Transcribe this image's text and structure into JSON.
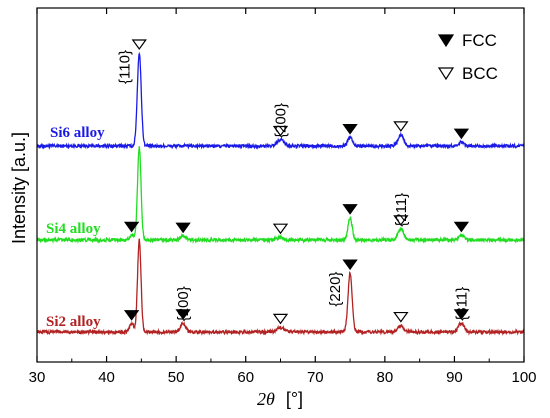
{
  "chart_data": {
    "type": "line",
    "xlabel_symbol": "2θ",
    "xlabel_unit": "[°]",
    "ylabel": "Intensity [a.u.]",
    "xlim": [
      30,
      100
    ],
    "x_ticks": [
      30,
      40,
      50,
      60,
      70,
      80,
      90,
      100
    ],
    "legend": {
      "placement": "top-right",
      "items": [
        {
          "marker": "filled-triangle",
          "label": "FCC"
        },
        {
          "marker": "open-triangle",
          "label": "BCC"
        }
      ]
    },
    "series": [
      {
        "name": "Si6 alloy",
        "color": "#1a1ae6",
        "peaks": [
          {
            "x": 44.7,
            "height": 1.0,
            "width": 0.28
          },
          {
            "x": 65.0,
            "height": 0.07,
            "width": 0.5
          },
          {
            "x": 75.0,
            "height": 0.09,
            "width": 0.35
          },
          {
            "x": 82.3,
            "height": 0.12,
            "width": 0.4
          },
          {
            "x": 91.0,
            "height": 0.04,
            "width": 0.4
          }
        ],
        "markers": [
          {
            "x": 44.7,
            "phase": "BCC"
          },
          {
            "x": 65.0,
            "phase": "BCC"
          },
          {
            "x": 75.0,
            "phase": "FCC"
          },
          {
            "x": 82.3,
            "phase": "BCC"
          },
          {
            "x": 91.0,
            "phase": "FCC"
          }
        ]
      },
      {
        "name": "Si4 alloy",
        "color": "#22dd22",
        "peaks": [
          {
            "x": 43.6,
            "height": 0.05,
            "width": 0.3
          },
          {
            "x": 44.7,
            "height": 1.0,
            "width": 0.25
          },
          {
            "x": 51.0,
            "height": 0.04,
            "width": 0.4
          },
          {
            "x": 65.0,
            "height": 0.03,
            "width": 0.5
          },
          {
            "x": 75.0,
            "height": 0.24,
            "width": 0.3
          },
          {
            "x": 82.3,
            "height": 0.12,
            "width": 0.4
          },
          {
            "x": 91.0,
            "height": 0.05,
            "width": 0.4
          }
        ],
        "markers": [
          {
            "x": 43.6,
            "phase": "FCC"
          },
          {
            "x": 51.0,
            "phase": "FCC"
          },
          {
            "x": 65.0,
            "phase": "BCC"
          },
          {
            "x": 75.0,
            "phase": "FCC"
          },
          {
            "x": 82.3,
            "phase": "BCC"
          },
          {
            "x": 91.0,
            "phase": "FCC"
          }
        ]
      },
      {
        "name": "Si2 alloy",
        "color": "#b22222",
        "peaks": [
          {
            "x": 43.6,
            "height": 0.09,
            "width": 0.3
          },
          {
            "x": 44.7,
            "height": 1.0,
            "width": 0.25
          },
          {
            "x": 51.0,
            "height": 0.1,
            "width": 0.35
          },
          {
            "x": 65.0,
            "height": 0.05,
            "width": 0.5
          },
          {
            "x": 75.0,
            "height": 0.64,
            "width": 0.3
          },
          {
            "x": 82.3,
            "height": 0.07,
            "width": 0.4
          },
          {
            "x": 91.0,
            "height": 0.1,
            "width": 0.4
          }
        ],
        "markers": [
          {
            "x": 43.6,
            "phase": "FCC"
          },
          {
            "x": 51.0,
            "phase": "FCC"
          },
          {
            "x": 65.0,
            "phase": "BCC"
          },
          {
            "x": 75.0,
            "phase": "FCC"
          },
          {
            "x": 82.3,
            "phase": "BCC"
          },
          {
            "x": 91.0,
            "phase": "FCC"
          }
        ]
      }
    ],
    "annotations": [
      {
        "text": "{110}",
        "x": 44.7,
        "series": "Si6 alloy"
      },
      {
        "text": "{200}",
        "x": 65.0,
        "series": "Si6 alloy"
      },
      {
        "text": "{211}",
        "x": 82.3,
        "series": "Si4 alloy"
      },
      {
        "text": "{200}",
        "x": 51.0,
        "series": "Si2 alloy"
      },
      {
        "text": "{220}",
        "x": 75.0,
        "series": "Si2 alloy"
      },
      {
        "text": "{311}",
        "x": 91.0,
        "series": "Si2 alloy"
      }
    ]
  }
}
